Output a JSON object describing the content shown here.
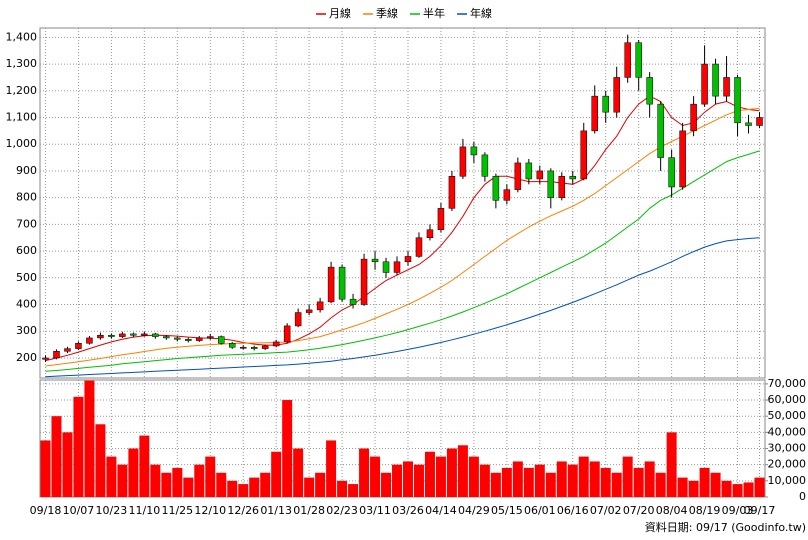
{
  "chart_data": {
    "type": "candlestick",
    "categories": [
      "09/18",
      null,
      null,
      "10/07",
      null,
      null,
      "10/23",
      null,
      null,
      "11/10",
      null,
      null,
      "11/25",
      null,
      null,
      "12/10",
      null,
      null,
      "12/26",
      null,
      null,
      "01/13",
      null,
      null,
      "01/28",
      null,
      null,
      "02/23",
      null,
      null,
      "03/11",
      null,
      null,
      "03/26",
      null,
      null,
      "04/14",
      null,
      null,
      "04/29",
      null,
      null,
      "05/15",
      null,
      null,
      "06/01",
      null,
      null,
      "06/16",
      null,
      null,
      "07/02",
      null,
      null,
      "07/20",
      null,
      null,
      "08/04",
      null,
      null,
      "08/19",
      null,
      null,
      "09/03",
      null,
      "09/17"
    ],
    "open": [
      195,
      200,
      225,
      235,
      255,
      275,
      285,
      280,
      290,
      285,
      290,
      280,
      275,
      270,
      265,
      275,
      280,
      255,
      240,
      240,
      235,
      245,
      260,
      320,
      370,
      380,
      410,
      540,
      420,
      400,
      570,
      560,
      520,
      560,
      580,
      650,
      680,
      760,
      880,
      990,
      960,
      880,
      790,
      830,
      930,
      870,
      900,
      800,
      880,
      870,
      1050,
      1180,
      1120,
      1250,
      1380,
      1250,
      1150,
      950,
      840,
      1050,
      1150,
      1300,
      1180,
      1250,
      1080,
      1070
    ],
    "high": [
      210,
      232,
      242,
      262,
      282,
      295,
      292,
      298,
      295,
      298,
      294,
      285,
      280,
      276,
      282,
      290,
      284,
      260,
      248,
      246,
      250,
      268,
      330,
      385,
      400,
      425,
      560,
      550,
      440,
      590,
      600,
      575,
      580,
      600,
      670,
      700,
      780,
      900,
      1020,
      1010,
      970,
      890,
      850,
      950,
      945,
      920,
      910,
      895,
      900,
      1080,
      1220,
      1200,
      1290,
      1410,
      1390,
      1270,
      1160,
      980,
      1080,
      1180,
      1370,
      1320,
      1330,
      1260,
      1110,
      1120
    ],
    "low": [
      185,
      195,
      218,
      230,
      250,
      268,
      272,
      275,
      278,
      280,
      272,
      268,
      262,
      258,
      260,
      268,
      250,
      234,
      232,
      228,
      230,
      240,
      255,
      315,
      360,
      370,
      405,
      410,
      385,
      395,
      530,
      500,
      510,
      545,
      575,
      640,
      670,
      750,
      870,
      930,
      860,
      760,
      775,
      820,
      850,
      850,
      760,
      790,
      850,
      865,
      1040,
      1080,
      1100,
      1230,
      1200,
      1100,
      900,
      800,
      830,
      1030,
      1140,
      1150,
      1160,
      1030,
      1040,
      1060
    ],
    "close": [
      200,
      225,
      235,
      255,
      275,
      285,
      280,
      290,
      285,
      290,
      280,
      275,
      270,
      265,
      275,
      280,
      255,
      240,
      240,
      235,
      245,
      260,
      320,
      370,
      380,
      410,
      540,
      420,
      400,
      570,
      560,
      520,
      560,
      580,
      650,
      680,
      760,
      880,
      990,
      960,
      880,
      790,
      830,
      930,
      870,
      900,
      800,
      880,
      870,
      1050,
      1180,
      1120,
      1250,
      1380,
      1250,
      1150,
      950,
      840,
      1050,
      1150,
      1300,
      1180,
      1250,
      1080,
      1070,
      1100
    ],
    "up_color": "#ff0000",
    "down_color": "#00c000",
    "ylim": [
      125,
      1435
    ],
    "yticks": [
      200,
      300,
      400,
      500,
      600,
      700,
      800,
      900,
      {
        "value": 1000,
        "label": "1,000"
      },
      {
        "value": 1100,
        "label": "1,100"
      },
      {
        "value": 1200,
        "label": "1,200"
      },
      {
        "value": 1300,
        "label": "1,300"
      },
      {
        "value": 1400,
        "label": "1,400"
      }
    ],
    "grid": true,
    "legend": "top",
    "series": [
      {
        "name": "月線",
        "color": "#e00000",
        "values": [
          190,
          200,
          210,
          222,
          235,
          248,
          260,
          270,
          278,
          283,
          285,
          284,
          282,
          278,
          275,
          274,
          272,
          266,
          258,
          252,
          248,
          248,
          255,
          270,
          290,
          315,
          350,
          380,
          400,
          430,
          460,
          490,
          510,
          530,
          550,
          580,
          620,
          670,
          730,
          800,
          850,
          880,
          880,
          870,
          860,
          860,
          860,
          855,
          850,
          870,
          920,
          980,
          1030,
          1100,
          1150,
          1180,
          1160,
          1100,
          1070,
          1080,
          1120,
          1150,
          1160,
          1140,
          1130,
          1125
        ]
      },
      {
        "name": "季線",
        "color": "#ff8000",
        "values": [
          170,
          175,
          180,
          186,
          192,
          198,
          205,
          212,
          218,
          224,
          230,
          236,
          240,
          244,
          247,
          250,
          252,
          254,
          255,
          256,
          257,
          258,
          260,
          265,
          272,
          280,
          292,
          305,
          318,
          332,
          348,
          365,
          382,
          400,
          420,
          442,
          465,
          490,
          520,
          550,
          580,
          610,
          640,
          665,
          690,
          712,
          732,
          750,
          768,
          790,
          815,
          845,
          875,
          905,
          935,
          965,
          990,
          1010,
          1030,
          1050,
          1070,
          1090,
          1110,
          1125,
          1130,
          1135
        ]
      },
      {
        "name": "半年",
        "color": "#00c000",
        "values": [
          150,
          153,
          157,
          161,
          165,
          169,
          173,
          178,
          182,
          186,
          190,
          194,
          198,
          201,
          204,
          207,
          210,
          212,
          214,
          216,
          218,
          220,
          222,
          226,
          231,
          236,
          243,
          250,
          258,
          266,
          275,
          285,
          295,
          306,
          318,
          330,
          343,
          357,
          372,
          388,
          405,
          422,
          440,
          460,
          480,
          500,
          520,
          540,
          560,
          580,
          605,
          630,
          660,
          690,
          720,
          760,
          790,
          810,
          835,
          860,
          885,
          910,
          935,
          950,
          962,
          975
        ]
      },
      {
        "name": "年線",
        "color": "#0050c0",
        "values": [
          130,
          132,
          134,
          136,
          138,
          140,
          142,
          144,
          146,
          148,
          150,
          152,
          154,
          156,
          158,
          160,
          162,
          164,
          166,
          168,
          170,
          172,
          174,
          177,
          180,
          184,
          188,
          193,
          198,
          204,
          210,
          217,
          224,
          232,
          240,
          249,
          258,
          268,
          278,
          289,
          300,
          312,
          324,
          337,
          350,
          364,
          378,
          393,
          408,
          424,
          440,
          457,
          474,
          492,
          510,
          525,
          542,
          560,
          580,
          598,
          615,
          628,
          638,
          643,
          647,
          650
        ]
      }
    ],
    "volume": {
      "type": "bar",
      "color": "#ff0000",
      "ylim": [
        0,
        72400
      ],
      "yticks": [
        0,
        {
          "value": 10000,
          "label": "10,000"
        },
        {
          "value": 20000,
          "label": "20,000"
        },
        {
          "value": 30000,
          "label": "30,000"
        },
        {
          "value": 40000,
          "label": "40,000"
        },
        {
          "value": 50000,
          "label": "50,000"
        },
        {
          "value": 60000,
          "label": "60,000"
        },
        {
          "value": 70000,
          "label": "70,000"
        }
      ],
      "values": [
        35000,
        50000,
        40000,
        62000,
        72000,
        45000,
        25000,
        20000,
        30000,
        38000,
        20000,
        15000,
        18000,
        12000,
        20000,
        25000,
        15000,
        10000,
        8000,
        12000,
        15000,
        28000,
        60000,
        30000,
        12000,
        15000,
        35000,
        10000,
        8000,
        30000,
        25000,
        15000,
        20000,
        22000,
        20000,
        28000,
        25000,
        30000,
        32000,
        25000,
        20000,
        15000,
        18000,
        22000,
        18000,
        20000,
        15000,
        22000,
        20000,
        25000,
        22000,
        18000,
        15000,
        25000,
        18000,
        22000,
        15000,
        40000,
        12000,
        10000,
        18000,
        15000,
        10000,
        8000,
        9000,
        12000
      ]
    },
    "footnote": "資料日期: 09/17  (Goodinfo.tw)"
  }
}
